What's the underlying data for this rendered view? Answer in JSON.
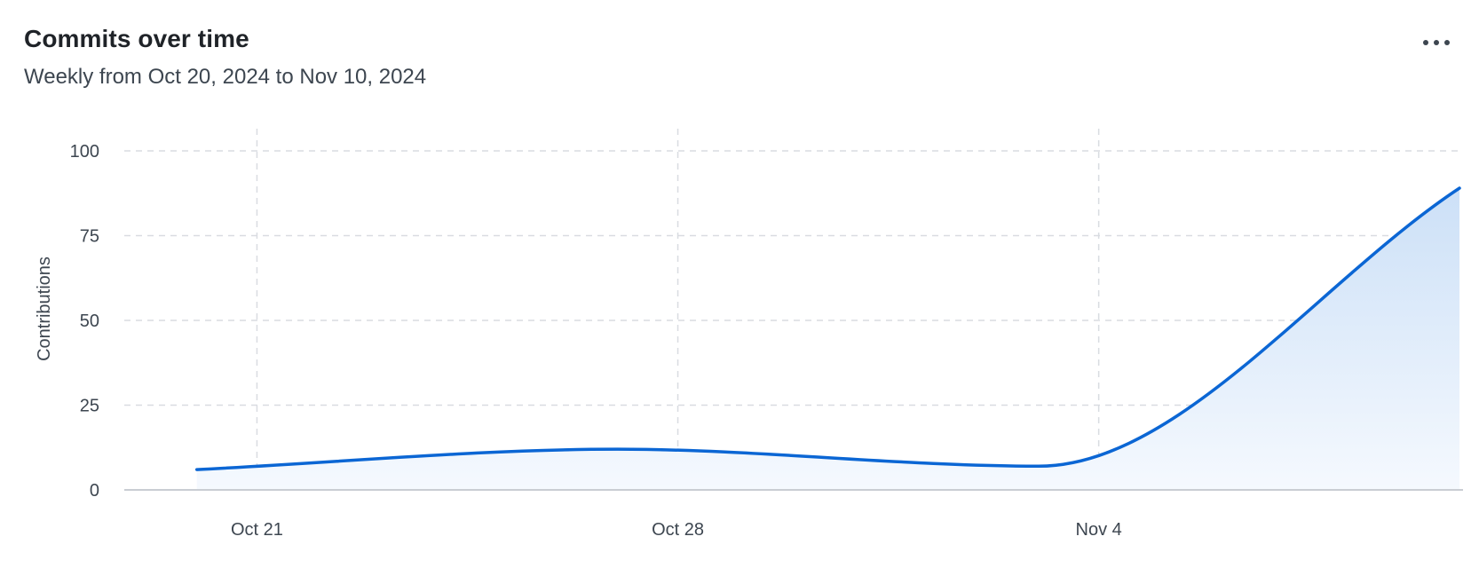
{
  "header": {
    "title": "Commits over time",
    "subtitle": "Weekly from Oct 20, 2024 to Nov 10, 2024",
    "menu_icon": "more-horizontal-icon"
  },
  "colors": {
    "line": "#0b66d4",
    "area_top": "#cce0f7",
    "area_bottom": "#f5f9fe",
    "grid": "#d9dce1",
    "axis": "#c9cdd3",
    "text": "#3d4650"
  },
  "chart_data": {
    "type": "area",
    "title": "Commits over time",
    "subtitle": "Weekly from Oct 20, 2024 to Nov 10, 2024",
    "xlabel": "",
    "ylabel": "Contributions",
    "x": [
      "2024-10-20",
      "2024-10-27",
      "2024-11-03",
      "2024-11-10"
    ],
    "series": [
      {
        "values": [
          6,
          12,
          7,
          89
        ]
      }
    ],
    "x_ticks": [
      {
        "date": "2024-10-21",
        "label": "Oct 21"
      },
      {
        "date": "2024-10-28",
        "label": "Oct 28"
      },
      {
        "date": "2024-11-04",
        "label": "Nov 4"
      }
    ],
    "y_ticks": [
      0,
      25,
      50,
      75,
      100
    ],
    "xlim": [
      "2024-10-19",
      "2024-11-10"
    ],
    "ylim": [
      0,
      100
    ],
    "grid": true,
    "legend": "none"
  }
}
